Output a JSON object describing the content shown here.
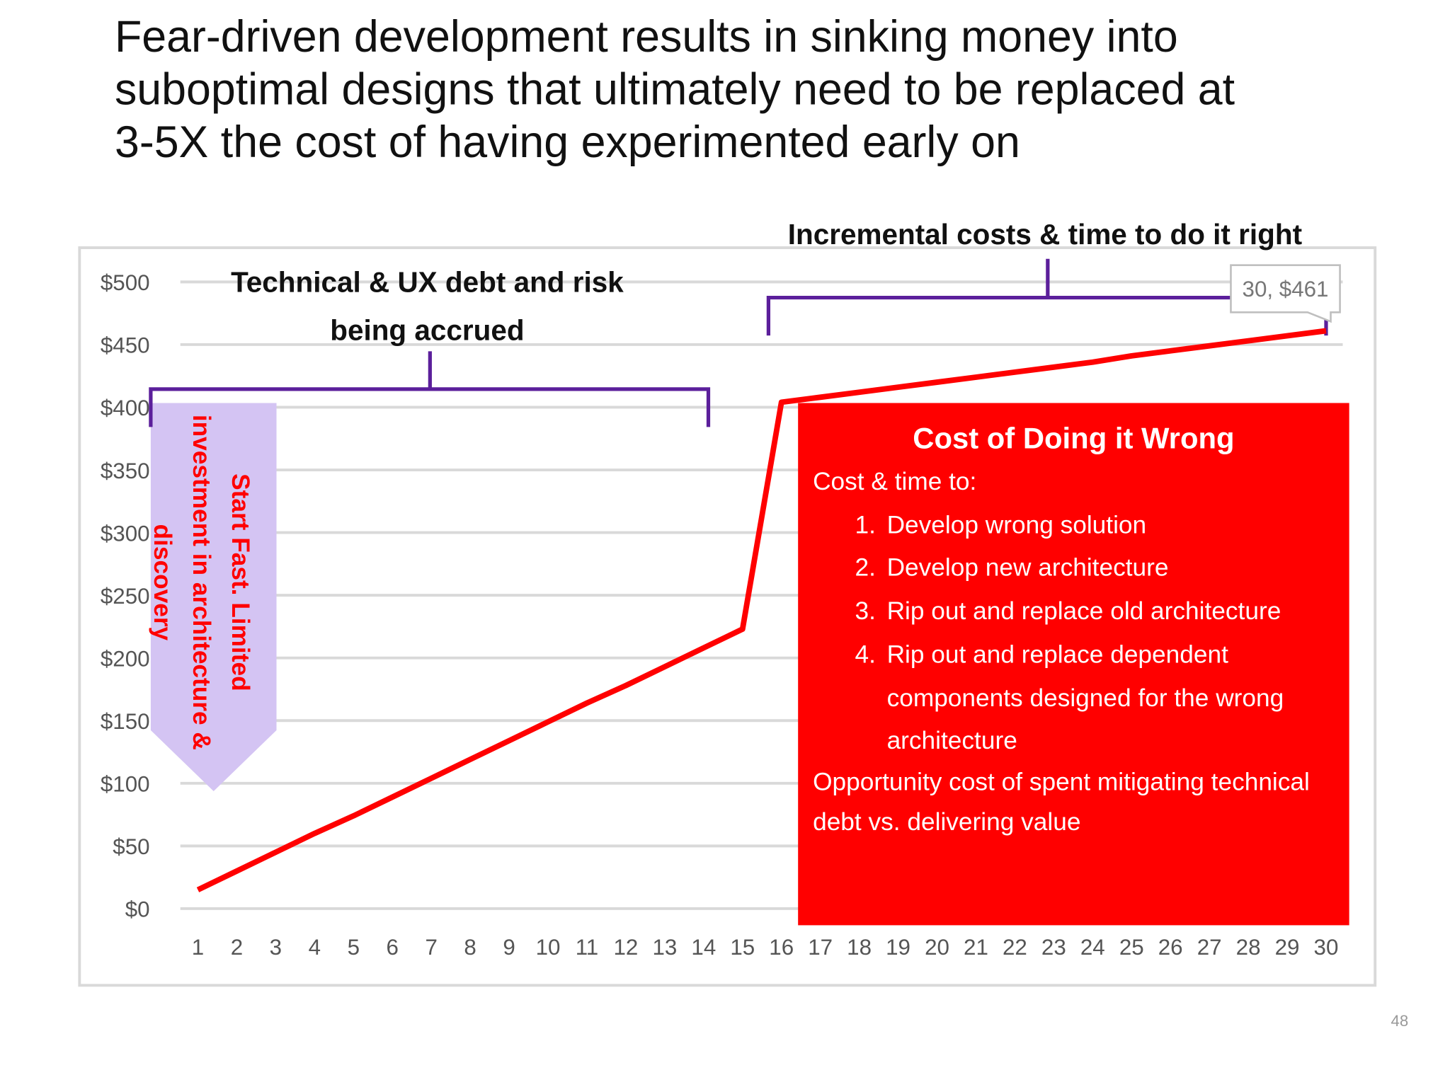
{
  "chart_data": {
    "type": "line",
    "title": [
      "Fear-driven development results in sinking money into",
      "suboptimal designs that ultimately need to be replaced at",
      "3-5X the cost of having experimented early on"
    ],
    "categories": [
      "1",
      "2",
      "3",
      "4",
      "5",
      "6",
      "7",
      "8",
      "9",
      "10",
      "11",
      "12",
      "13",
      "14",
      "15",
      "16",
      "17",
      "18",
      "19",
      "20",
      "21",
      "22",
      "23",
      "24",
      "25",
      "26",
      "27",
      "28",
      "29",
      "30"
    ],
    "values": [
      15,
      30,
      45,
      60,
      74,
      89,
      104,
      119,
      134,
      149,
      164,
      178,
      193,
      208,
      223,
      404,
      408,
      412,
      416,
      420,
      424,
      428,
      432,
      436,
      441,
      445,
      449,
      453,
      457,
      461
    ],
    "value_labels": [
      null,
      null,
      null,
      null,
      null,
      null,
      null,
      null,
      null,
      null,
      null,
      null,
      null,
      null,
      null,
      null,
      null,
      null,
      null,
      null,
      null,
      null,
      null,
      null,
      null,
      null,
      null,
      null,
      null,
      "30, $461"
    ],
    "color": "#ff0000",
    "ylim": [
      0,
      500
    ],
    "yticks": [
      {
        "value": 0,
        "label": "$0"
      },
      {
        "value": 50,
        "label": "$50"
      },
      {
        "value": 100,
        "label": "$100"
      },
      {
        "value": 150,
        "label": "$150"
      },
      {
        "value": 200,
        "label": "$200"
      },
      {
        "value": 250,
        "label": "$250"
      },
      {
        "value": 300,
        "label": "$300"
      },
      {
        "value": 350,
        "label": "$350"
      },
      {
        "value": 400,
        "label": "$400"
      },
      {
        "value": 450,
        "label": "$450"
      },
      {
        "value": 500,
        "label": "$500"
      }
    ],
    "grid": true,
    "annotations": {
      "debt_label": [
        "Technical & UX debt and risk",
        "being accrued"
      ],
      "incremental_label": "Incremental costs & time to do it right",
      "arrow_label": [
        "Start Fast. Limited",
        "investment in architecture &",
        "discovery"
      ],
      "red_box": {
        "title": "Cost of Doing it Wrong",
        "intro": "Cost & time to:",
        "items": [
          {
            "marker": "1.",
            "text": "Develop wrong solution"
          },
          {
            "marker": "2.",
            "text": "Develop new architecture"
          },
          {
            "marker": "3.",
            "text": "Rip out and replace old architecture"
          },
          {
            "marker": "4.",
            "text": "Rip out and replace dependent components designed for the wrong architecture"
          }
        ],
        "footer": "Opportunity cost of spent mitigating technical debt vs. delivering value"
      }
    },
    "page_number": "48"
  }
}
